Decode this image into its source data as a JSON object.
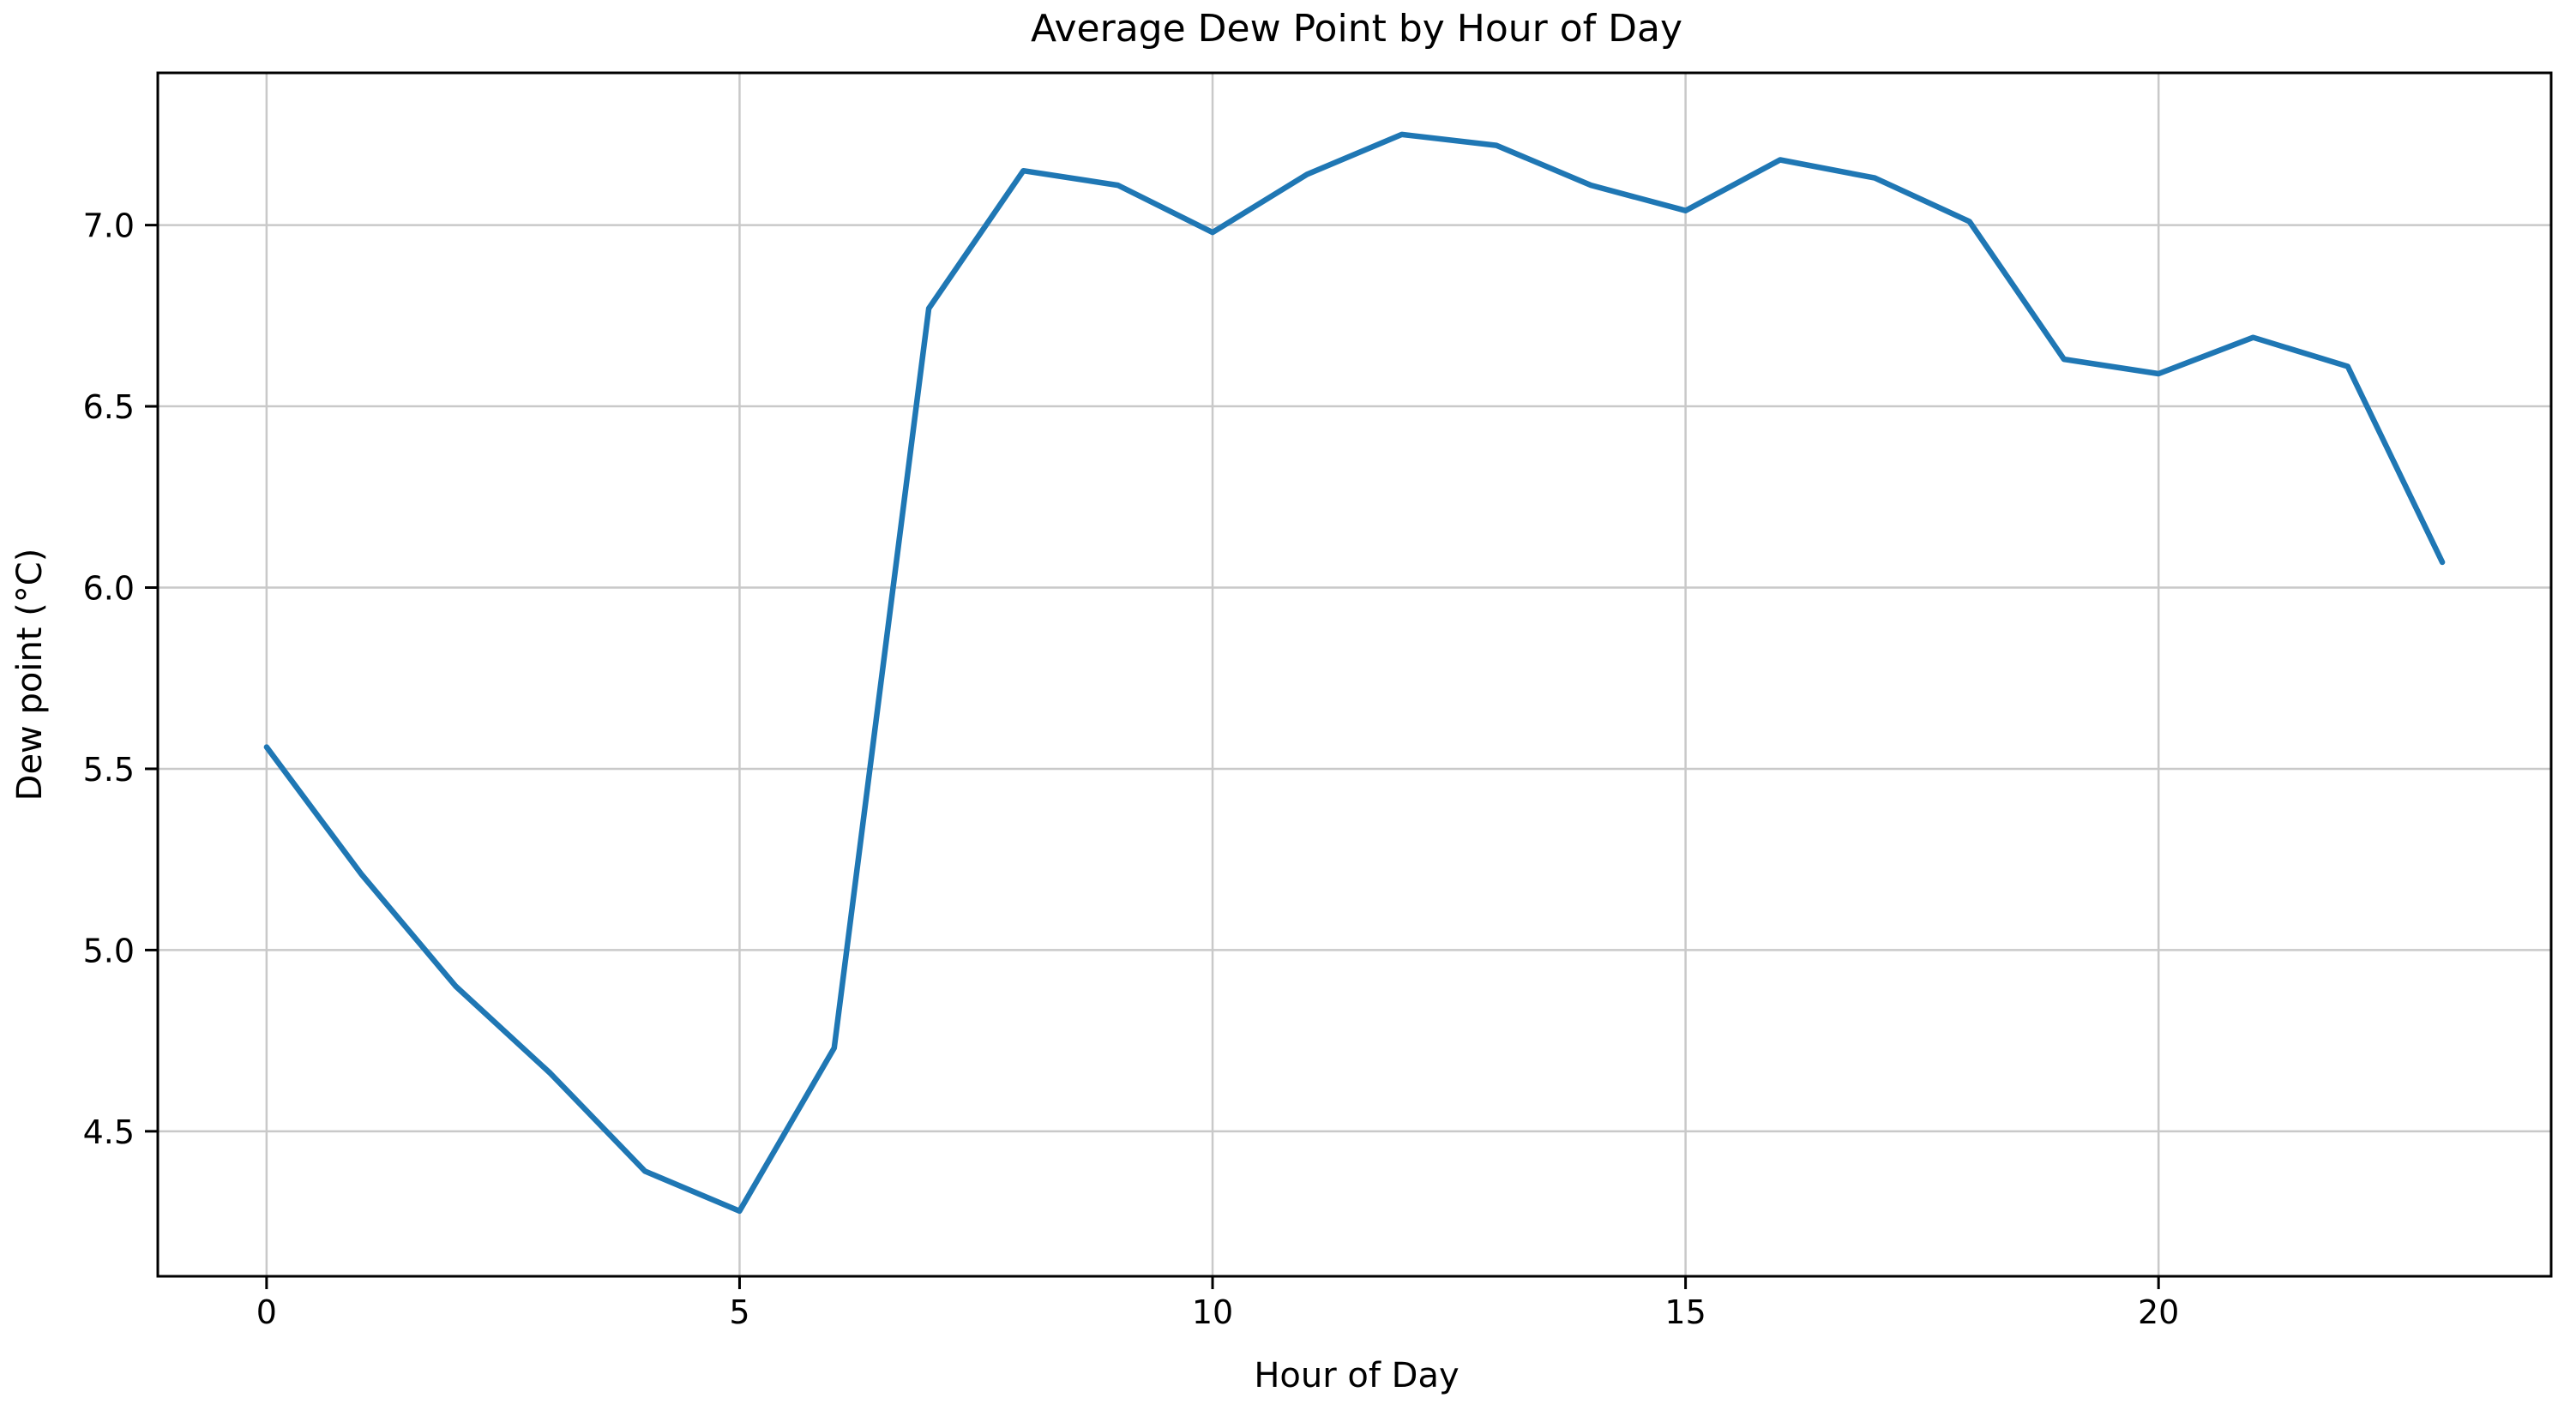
{
  "figure": {
    "background": "#ffffff"
  },
  "chart_data": {
    "type": "line",
    "title": "Average Dew Point by Hour of Day",
    "xlabel": "Hour of Day",
    "ylabel": "Dew point (°C)",
    "x": [
      0,
      1,
      2,
      3,
      4,
      5,
      6,
      7,
      8,
      9,
      10,
      11,
      12,
      13,
      14,
      15,
      16,
      17,
      18,
      19,
      20,
      21,
      22,
      23
    ],
    "y": [
      5.56,
      5.21,
      4.9,
      4.66,
      4.39,
      4.28,
      4.73,
      6.77,
      7.15,
      7.11,
      6.98,
      7.14,
      7.25,
      7.22,
      7.11,
      7.04,
      7.18,
      7.13,
      7.01,
      6.63,
      6.59,
      6.69,
      6.61,
      6.07
    ],
    "x_ticks": [
      0,
      5,
      10,
      15,
      20
    ],
    "y_ticks": [
      4.5,
      5.0,
      5.5,
      6.0,
      6.5,
      7.0
    ],
    "xlim": [
      -1.15,
      24.15
    ],
    "ylim": [
      4.1,
      7.42
    ],
    "grid": true,
    "legend_position": "none",
    "line_color": "#1f77b4",
    "grid_color": "#c9c9c9",
    "spine_color": "#000000"
  }
}
